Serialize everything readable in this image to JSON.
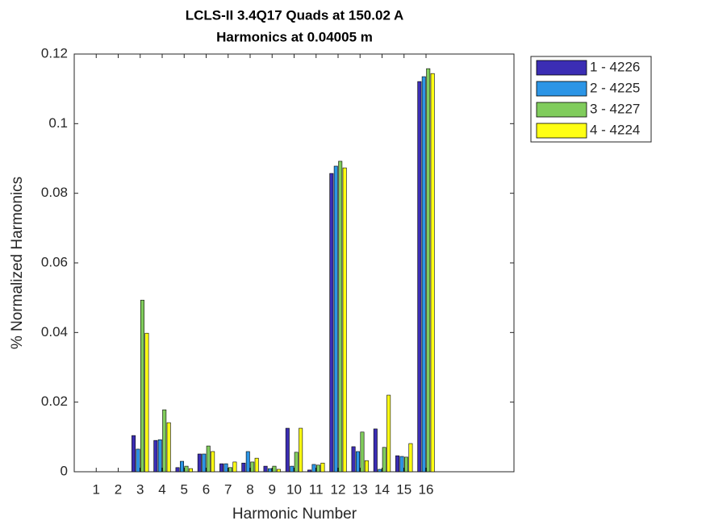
{
  "chart_data": {
    "type": "bar",
    "title": [
      "LCLS-II 3.4Q17 Quads at 150.02 A",
      "Harmonics at 0.04005 m"
    ],
    "xlabel": "Harmonic Number",
    "ylabel": "% Normalized Harmonics",
    "x": [
      1,
      2,
      3,
      4,
      5,
      6,
      7,
      8,
      9,
      10,
      11,
      12,
      13,
      14,
      15,
      16
    ],
    "xlim": [
      0,
      20
    ],
    "xticks": [
      1,
      2,
      3,
      4,
      5,
      6,
      7,
      8,
      9,
      10,
      11,
      12,
      13,
      14,
      15,
      16
    ],
    "ylim": [
      0,
      0.12
    ],
    "yticks": [
      0,
      0.02,
      0.04,
      0.06,
      0.08,
      0.1,
      0.12
    ],
    "legend": "outside-top-right",
    "series": [
      {
        "name": "1 - 4226",
        "color": "#3b2db4",
        "values": [
          0,
          0,
          0.0104,
          0.009,
          0.0012,
          0.0051,
          0.0023,
          0.0025,
          0.0016,
          0.0125,
          0.0005,
          0.0857,
          0.0072,
          0.0123,
          0.0046,
          0.1121
        ]
      },
      {
        "name": "2 - 4225",
        "color": "#2c95e6",
        "values": [
          0,
          0,
          0.0065,
          0.0092,
          0.003,
          0.0051,
          0.0023,
          0.0058,
          0.0009,
          0.0016,
          0.0021,
          0.0878,
          0.0058,
          0.0007,
          0.0044,
          0.1135
        ]
      },
      {
        "name": "3 - 4227",
        "color": "#80cc5c",
        "values": [
          0,
          0,
          0.0493,
          0.0178,
          0.0016,
          0.0074,
          0.0012,
          0.0028,
          0.0016,
          0.0056,
          0.0019,
          0.0892,
          0.0114,
          0.007,
          0.0042,
          0.1158
        ]
      },
      {
        "name": "4 - 4224",
        "color": "#ffff14",
        "values": [
          0,
          0,
          0.0398,
          0.0141,
          0.0009,
          0.0058,
          0.0028,
          0.0039,
          0.0007,
          0.0125,
          0.0025,
          0.0873,
          0.0032,
          0.022,
          0.0081,
          0.1144
        ]
      }
    ]
  }
}
